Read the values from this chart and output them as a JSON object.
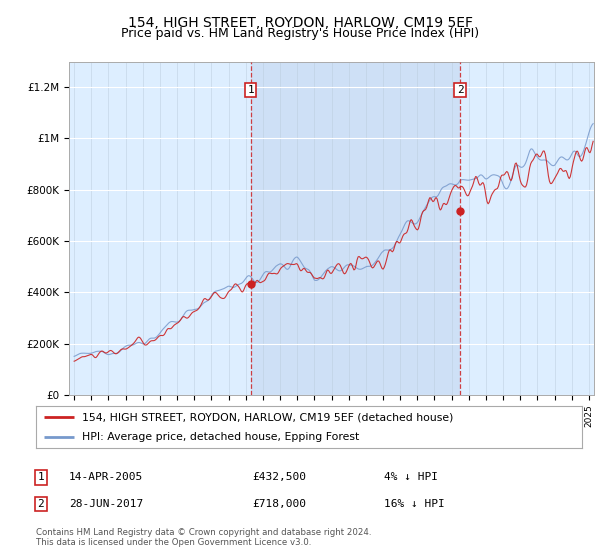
{
  "title": "154, HIGH STREET, ROYDON, HARLOW, CM19 5EF",
  "subtitle": "Price paid vs. HM Land Registry's House Price Index (HPI)",
  "ylim": [
    0,
    1300000
  ],
  "xlim_start": 1994.7,
  "xlim_end": 2025.3,
  "background_color": "#ddeeff",
  "highlight_color": "#c8d8ee",
  "hpi_color": "#7799cc",
  "price_color": "#cc2222",
  "marker1_x": 2005.29,
  "marker1_y": 432500,
  "marker2_x": 2017.49,
  "marker2_y": 718000,
  "legend_line1": "154, HIGH STREET, ROYDON, HARLOW, CM19 5EF (detached house)",
  "legend_line2": "HPI: Average price, detached house, Epping Forest",
  "copyright": "Contains HM Land Registry data © Crown copyright and database right 2024.\nThis data is licensed under the Open Government Licence v3.0.",
  "title_fontsize": 10,
  "subtitle_fontsize": 9
}
